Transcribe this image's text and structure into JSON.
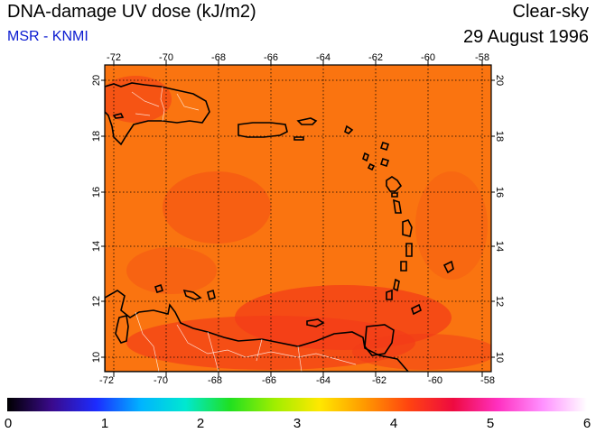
{
  "header": {
    "title": "DNA-damage UV dose (kJ/m2)",
    "source": "MSR - KNMI",
    "condition": "Clear-sky",
    "date": "29 August 1996"
  },
  "map": {
    "lon_ticks": [
      "-72",
      "-70",
      "-68",
      "-66",
      "-64",
      "-62",
      "-60",
      "-58"
    ],
    "lat_ticks": [
      "10",
      "12",
      "14",
      "16",
      "18",
      "20"
    ],
    "base_color": "#fa7410",
    "hot_color": "#f23a18",
    "land_outline_color": "#000000",
    "border_color": "#ffffff"
  },
  "colorbar": {
    "labels": [
      "0",
      "1",
      "2",
      "3",
      "4",
      "5",
      "6"
    ],
    "stops": [
      "#000000",
      "#3a0a8c",
      "#1c2cff",
      "#00b4ff",
      "#00e8d0",
      "#20e020",
      "#a0ee00",
      "#ffe800",
      "#ff9a00",
      "#ff4410",
      "#ee0a40",
      "#ff30c0",
      "#ff90ff",
      "#ffffff"
    ]
  }
}
